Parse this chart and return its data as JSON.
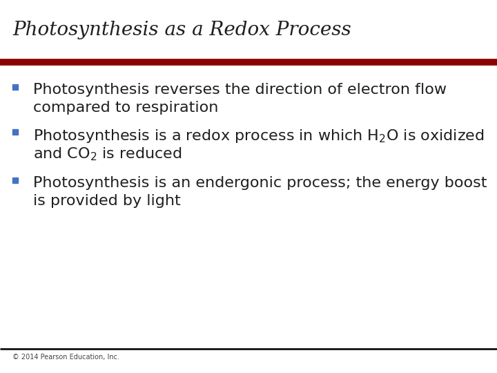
{
  "title": "Photosynthesis as a Redox Process",
  "title_color": "#1F1F1F",
  "title_fontsize": 20,
  "title_fontstyle": "italic",
  "title_fontfamily": "serif",
  "background_color": "#FFFFFF",
  "divider_top_color": "#8B0000",
  "divider_bottom_color": "#111111",
  "bullet_color": "#4472C4",
  "bullet_char": "▧",
  "text_color": "#1F1F1F",
  "text_fontsize": 16,
  "footer_text": "© 2014 Pearson Education, Inc.",
  "footer_fontsize": 7,
  "footer_color": "#444444",
  "bullet1_line1": "Photosynthesis reverses the direction of electron flow",
  "bullet1_line2": "compared to respiration",
  "bullet2_line1": "Photosynthesis is a redox process in which H$_2$O is oxidized",
  "bullet2_line2": "and CO$_2$ is reduced",
  "bullet3_line1": "Photosynthesis is an endergonic process; the energy boost",
  "bullet3_line2": "is provided by light"
}
